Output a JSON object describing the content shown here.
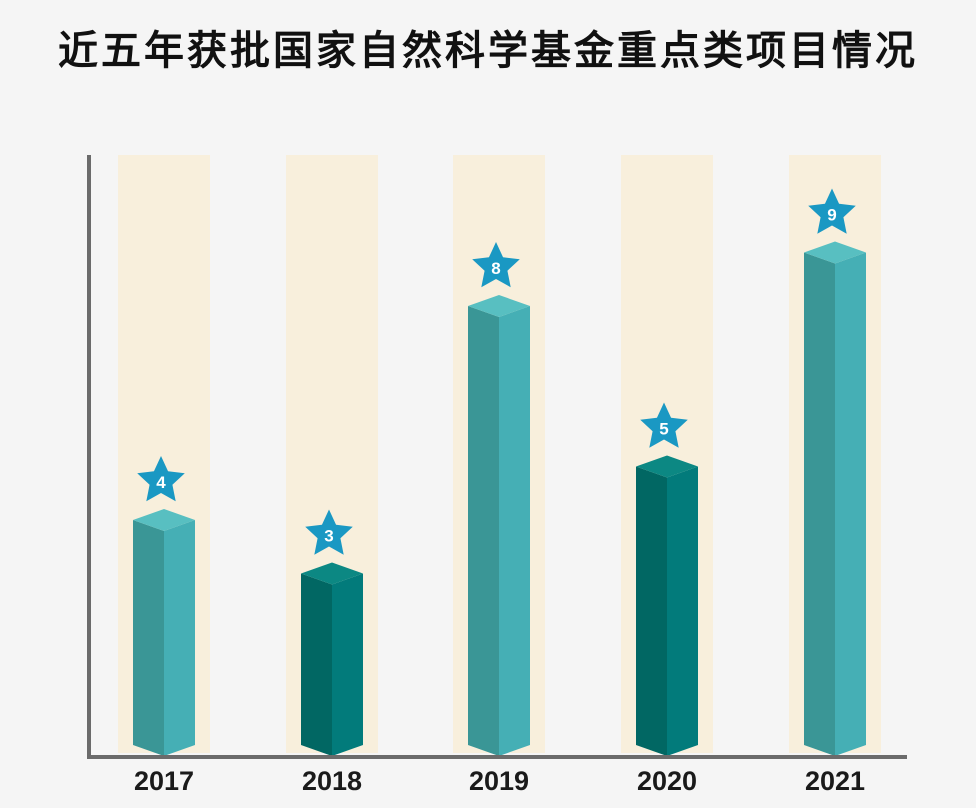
{
  "chart_data": {
    "type": "bar",
    "title": "近五年获批国家自然科学基金重点类项目情况",
    "categories": [
      "2017",
      "2018",
      "2019",
      "2020",
      "2021"
    ],
    "values": [
      4,
      3,
      8,
      5,
      9
    ],
    "xlabel": "",
    "ylabel": "",
    "ylim": [
      0,
      10
    ],
    "grid": false,
    "legend": "none",
    "data_labels": [
      "4",
      "3",
      "8",
      "5",
      "9"
    ],
    "colors": {
      "light_front": "#45afb5",
      "light_side": "#3a9696",
      "light_top": "#58bfc1",
      "dark_front": "#027b7b",
      "dark_side": "#016763",
      "dark_top": "#0c8883",
      "band": "#f8efdc",
      "star": "#1a98c3",
      "axis": "#6b6b6b"
    },
    "bar_styles": [
      "light",
      "dark",
      "light",
      "dark",
      "light"
    ]
  }
}
